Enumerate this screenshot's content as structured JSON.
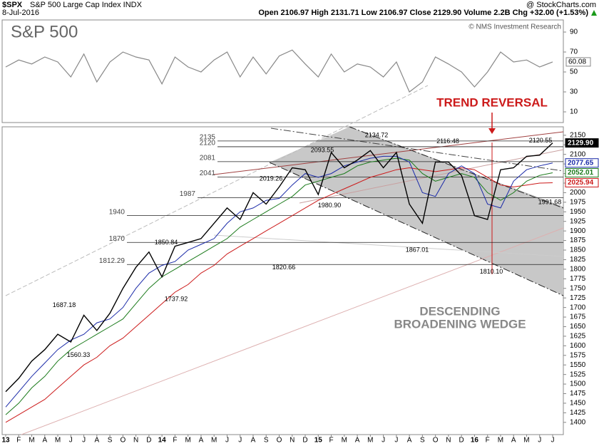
{
  "header": {
    "symbol": "$SPX",
    "name": "S&P 500 Large Cap Index INDX",
    "date": "8-Jul-2016",
    "source": "@ StockCharts.com",
    "quote": "Open 2106.97  High 2131.71  Low 2106.97  Close 2129.90  Volume 2.2B  Chg +32.00 (+1.53%)"
  },
  "chart_data": [
    {
      "type": "line",
      "color": "#888888",
      "ylim": [
        0,
        100
      ],
      "yticks": [
        10,
        30,
        50,
        70,
        90
      ],
      "values": [
        55,
        62,
        58,
        65,
        60,
        45,
        68,
        40,
        60,
        70,
        65,
        62,
        38,
        65,
        55,
        50,
        62,
        70,
        45,
        65,
        48,
        66,
        72,
        58,
        45,
        68,
        50,
        58,
        55,
        45,
        60,
        30,
        40,
        65,
        58,
        50,
        35,
        50,
        70,
        60,
        62,
        55,
        60.08
      ]
    },
    {
      "type": "line",
      "title": "S&P 500",
      "credit": "© NMS Investment Research",
      "callout": "TREND REVERSAL",
      "pattern": [
        "DESCENDING",
        "BROADENING WEDGE"
      ],
      "categories": [
        "13",
        "F",
        "M",
        "A",
        "M",
        "J",
        "J",
        "A",
        "S",
        "O",
        "N",
        "D",
        "14",
        "F",
        "M",
        "A",
        "M",
        "J",
        "J",
        "A",
        "S",
        "O",
        "N",
        "D",
        "15",
        "F",
        "M",
        "A",
        "M",
        "J",
        "J",
        "A",
        "S",
        "O",
        "N",
        "D",
        "16",
        "F",
        "M",
        "A",
        "M",
        "J",
        "J"
      ],
      "ylim": [
        1368,
        2172
      ],
      "yticks": [
        1400,
        1425,
        1450,
        1475,
        1500,
        1525,
        1550,
        1575,
        1600,
        1625,
        1650,
        1675,
        1700,
        1725,
        1750,
        1775,
        1800,
        1825,
        1850,
        1875,
        1900,
        1925,
        1950,
        1975,
        2000,
        2025,
        2050,
        2075,
        2100,
        2125,
        2150
      ],
      "levels": [
        2135,
        2120,
        2081,
        2041,
        1987,
        1940,
        1870,
        1812.29
      ],
      "annotations": [
        1687.18,
        1560.33,
        1850.84,
        1737.92,
        2019.26,
        1820.66,
        {
          "value": 1980.9,
          "label": "1980.90"
        },
        2093.55,
        2134.72,
        2116.48,
        1867.01,
        {
          "value": 1810.1,
          "label": "1810.10"
        },
        2120.55,
        1991.68
      ],
      "series": [
        {
          "color": "#000000",
          "values": [
            1480,
            1515,
            1560,
            1590,
            1630,
            1610,
            1680,
            1640,
            1685,
            1750,
            1805,
            1845,
            1780,
            1860,
            1870,
            1880,
            1920,
            1960,
            1930,
            2000,
            1970,
            2015,
            2065,
            2060,
            1995,
            2105,
            2065,
            2085,
            2110,
            2065,
            2105,
            1970,
            1920,
            2080,
            2080,
            2045,
            1940,
            1930,
            2060,
            2065,
            2095,
            2098,
            2129.9
          ],
          "value_labels": [
            null,
            null,
            null,
            null,
            null,
            null,
            null,
            null,
            null,
            null,
            null,
            null,
            null,
            null,
            null,
            null,
            null,
            null,
            null,
            null,
            null,
            null,
            null,
            null,
            null,
            null,
            null,
            null,
            null,
            null,
            null,
            null,
            null,
            null,
            null,
            null,
            null,
            null,
            null,
            null,
            null,
            null,
            "2129.90"
          ]
        },
        {
          "color": "#1a2aa8",
          "values": [
            1440,
            1480,
            1520,
            1555,
            1590,
            1615,
            1630,
            1660,
            1670,
            1700,
            1750,
            1790,
            1810,
            1820,
            1850,
            1865,
            1880,
            1920,
            1950,
            1960,
            1980,
            1985,
            2020,
            2050,
            2040,
            2050,
            2070,
            2080,
            2090,
            2095,
            2095,
            2080,
            2000,
            1990,
            2050,
            2070,
            2050,
            1970,
            1960,
            2030,
            2060,
            2070,
            2077.65
          ]
        },
        {
          "color": "#1a7a1a",
          "values": [
            1420,
            1450,
            1490,
            1520,
            1560,
            1590,
            1610,
            1630,
            1650,
            1670,
            1710,
            1750,
            1780,
            1800,
            1820,
            1840,
            1860,
            1880,
            1910,
            1930,
            1950,
            1970,
            1990,
            2020,
            2030,
            2040,
            2050,
            2070,
            2080,
            2085,
            2090,
            2085,
            2050,
            2030,
            2040,
            2050,
            2040,
            2000,
            1980,
            2000,
            2030,
            2045,
            2052.01
          ]
        },
        {
          "color": "#cc1a1a",
          "values": [
            1400,
            1420,
            1440,
            1460,
            1490,
            1520,
            1550,
            1570,
            1600,
            1620,
            1650,
            1680,
            1710,
            1740,
            1760,
            1790,
            1810,
            1840,
            1860,
            1880,
            1900,
            1920,
            1940,
            1960,
            1980,
            1995,
            2010,
            2025,
            2040,
            2050,
            2060,
            2065,
            2060,
            2055,
            2060,
            2065,
            2060,
            2040,
            2020,
            2015,
            2020,
            2025,
            2025.94
          ]
        }
      ]
    }
  ]
}
